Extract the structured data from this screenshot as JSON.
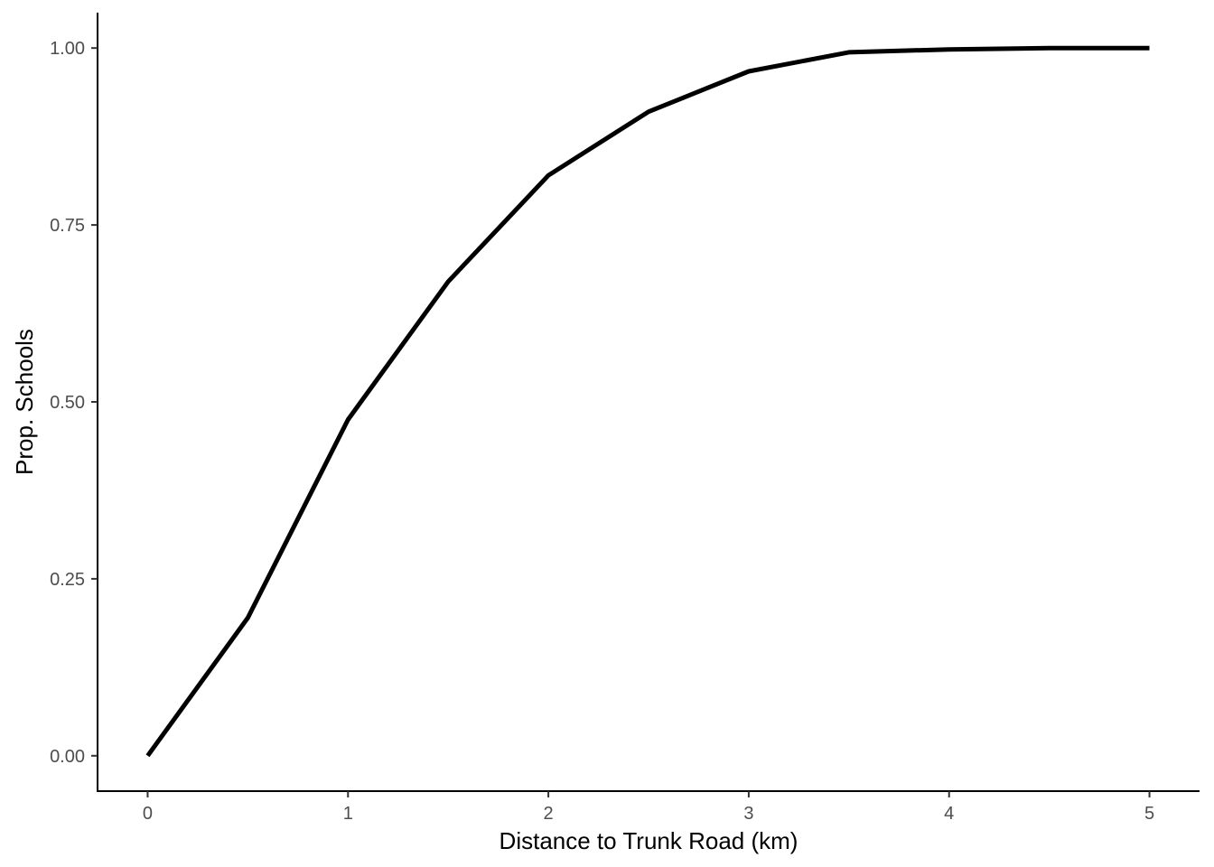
{
  "chart_data": {
    "type": "line",
    "title": "",
    "xlabel": "Distance to Trunk Road (km)",
    "ylabel": "Prop. Schools",
    "xlim": [
      -0.25,
      5.25
    ],
    "ylim": [
      -0.05,
      1.05
    ],
    "x_ticks": [
      0,
      1,
      2,
      3,
      4,
      5
    ],
    "x_tick_labels": [
      "0",
      "1",
      "2",
      "3",
      "4",
      "5"
    ],
    "y_ticks": [
      0,
      0.25,
      0.5,
      0.75,
      1.0
    ],
    "y_tick_labels": [
      "0.00",
      "0.25",
      "0.50",
      "0.75",
      "1.00"
    ],
    "grid": false,
    "legend": "none",
    "series": [
      {
        "color": "#000000",
        "x": [
          0,
          0.5,
          1,
          1.5,
          2,
          2.5,
          3,
          3.5,
          4,
          4.5,
          5
        ],
        "y": [
          0.0,
          0.195,
          0.475,
          0.67,
          0.82,
          0.91,
          0.967,
          0.994,
          0.998,
          1.0,
          1.0
        ]
      }
    ]
  }
}
